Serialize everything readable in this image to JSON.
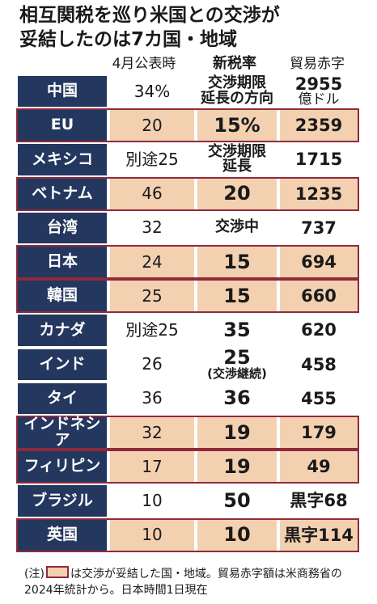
{
  "title_lines": [
    "相互関税を巡り米国との交渉が",
    "妥結したのは7カ国・地域"
  ],
  "headers": {
    "announced": "4月公表時",
    "new_rate": "新税率",
    "deficit": "貿易赤字"
  },
  "note": {
    "prefix": "(注)",
    "text": "は交渉が妥結した国・地域。貿易赤字額は米商務省の2024年統計から。日本時間1日現在"
  },
  "colors": {
    "country_bg": "#24375f",
    "concluded_fill": "#f3d1b0",
    "concluded_border": "#8e2a3c"
  },
  "chart_data": {
    "type": "table",
    "columns": [
      "",
      "4月公表時",
      "新税率",
      "貿易赤字"
    ],
    "rows": [
      {
        "country": "中国",
        "april": "34%",
        "new_rate": "交渉期限",
        "new_rate_sub": "延長の方向",
        "deficit": "2955",
        "deficit_sub": "億ドル",
        "concluded": false
      },
      {
        "country": "EU",
        "april": "20",
        "new_rate": "15%",
        "new_rate_sub": "",
        "deficit": "2359",
        "deficit_sub": "",
        "concluded": true
      },
      {
        "country": "メキシコ",
        "april": "別途25",
        "new_rate": "交渉期限",
        "new_rate_sub": "延長",
        "deficit": "1715",
        "deficit_sub": "",
        "concluded": false
      },
      {
        "country": "ベトナム",
        "april": "46",
        "new_rate": "20",
        "new_rate_sub": "",
        "deficit": "1235",
        "deficit_sub": "",
        "concluded": true
      },
      {
        "country": "台湾",
        "april": "32",
        "new_rate": "交渉中",
        "new_rate_sub": "",
        "deficit": "737",
        "deficit_sub": "",
        "concluded": false
      },
      {
        "country": "日本",
        "april": "24",
        "new_rate": "15",
        "new_rate_sub": "",
        "deficit": "694",
        "deficit_sub": "",
        "concluded": true
      },
      {
        "country": "韓国",
        "april": "25",
        "new_rate": "15",
        "new_rate_sub": "",
        "deficit": "660",
        "deficit_sub": "",
        "concluded": true
      },
      {
        "country": "カナダ",
        "april": "別途25",
        "new_rate": "35",
        "new_rate_sub": "",
        "deficit": "620",
        "deficit_sub": "",
        "concluded": false
      },
      {
        "country": "インド",
        "april": "26",
        "new_rate": "25",
        "new_rate_sub": "(交渉継続)",
        "deficit": "458",
        "deficit_sub": "",
        "concluded": false
      },
      {
        "country": "タイ",
        "april": "36",
        "new_rate": "36",
        "new_rate_sub": "",
        "deficit": "455",
        "deficit_sub": "",
        "concluded": false
      },
      {
        "country": "インドネシア",
        "april": "32",
        "new_rate": "19",
        "new_rate_sub": "",
        "deficit": "179",
        "deficit_sub": "",
        "concluded": true
      },
      {
        "country": "フィリピン",
        "april": "17",
        "new_rate": "19",
        "new_rate_sub": "",
        "deficit": "49",
        "deficit_sub": "",
        "concluded": true
      },
      {
        "country": "ブラジル",
        "april": "10",
        "new_rate": "50",
        "new_rate_sub": "",
        "deficit": "黒字68",
        "deficit_sub": "",
        "concluded": false
      },
      {
        "country": "英国",
        "april": "10",
        "new_rate": "10",
        "new_rate_sub": "",
        "deficit": "黒字114",
        "deficit_sub": "",
        "concluded": true
      }
    ]
  }
}
